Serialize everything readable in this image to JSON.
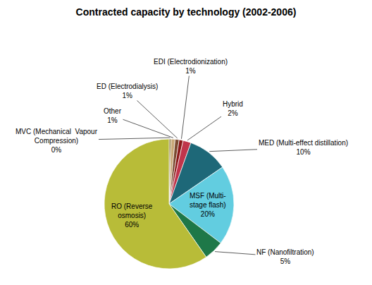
{
  "chart_data": {
    "type": "pie",
    "title": "Contracted capacity by technology (2002-2006)",
    "categories": [
      "MVC (Mechanical  Vapour\nCompression)",
      "Other",
      "ED (Electrodialysis)",
      "EDI (Electrodionization)",
      "Hybrid",
      "MED (Multi-effect distillation)",
      "MSF (Multi-\nstage flash)",
      "NF (Nanofiltration)",
      "RO (Reverse\nosmosis)"
    ],
    "values": [
      0.5,
      1,
      1,
      1,
      2,
      10,
      20,
      5,
      60
    ],
    "value_labels": [
      "0%",
      "1%",
      "1%",
      "1%",
      "2%",
      "10%",
      "20%",
      "5%",
      "60%"
    ],
    "colors": [
      "#8B7536",
      "#c8a878",
      "#7a4a30",
      "#8B1a1a",
      "#c0354b",
      "#1e6878",
      "#62cde0",
      "#1e7848",
      "#b8bc38"
    ],
    "data_labels": true
  }
}
